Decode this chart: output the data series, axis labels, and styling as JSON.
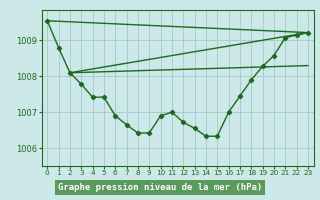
{
  "background_color": "#cce8e8",
  "plot_bg_color": "#cce8e8",
  "grid_color": "#aacccc",
  "line_color": "#1a6b1a",
  "title": "Graphe pression niveau de la mer (hPa)",
  "title_bg": "#5a9a5a",
  "title_fg": "#ffffff",
  "xlim": [
    -0.5,
    23.5
  ],
  "ylim": [
    1005.5,
    1009.85
  ],
  "yticks": [
    1006,
    1007,
    1008,
    1009
  ],
  "xticks": [
    0,
    1,
    2,
    3,
    4,
    5,
    6,
    7,
    8,
    9,
    10,
    11,
    12,
    13,
    14,
    15,
    16,
    17,
    18,
    19,
    20,
    21,
    22,
    23
  ],
  "line1_x": [
    0,
    1,
    2,
    3,
    4,
    5,
    6,
    7,
    8,
    9,
    10,
    11,
    12,
    13,
    14,
    15,
    16,
    17,
    18,
    19,
    20,
    21,
    22,
    23
  ],
  "line1_y": [
    1009.55,
    1008.8,
    1008.1,
    1007.78,
    1007.42,
    1007.42,
    1006.9,
    1006.65,
    1006.42,
    1006.42,
    1006.9,
    1007.0,
    1006.72,
    1006.55,
    1006.33,
    1006.33,
    1007.0,
    1007.45,
    1007.9,
    1008.28,
    1008.58,
    1009.08,
    1009.15,
    1009.22
  ],
  "line2_x": [
    0,
    23
  ],
  "line2_y": [
    1009.55,
    1009.22
  ],
  "line3_x": [
    2,
    23
  ],
  "line3_y": [
    1008.1,
    1009.22
  ],
  "line4_x": [
    2,
    23
  ],
  "line4_y": [
    1008.1,
    1008.3
  ]
}
